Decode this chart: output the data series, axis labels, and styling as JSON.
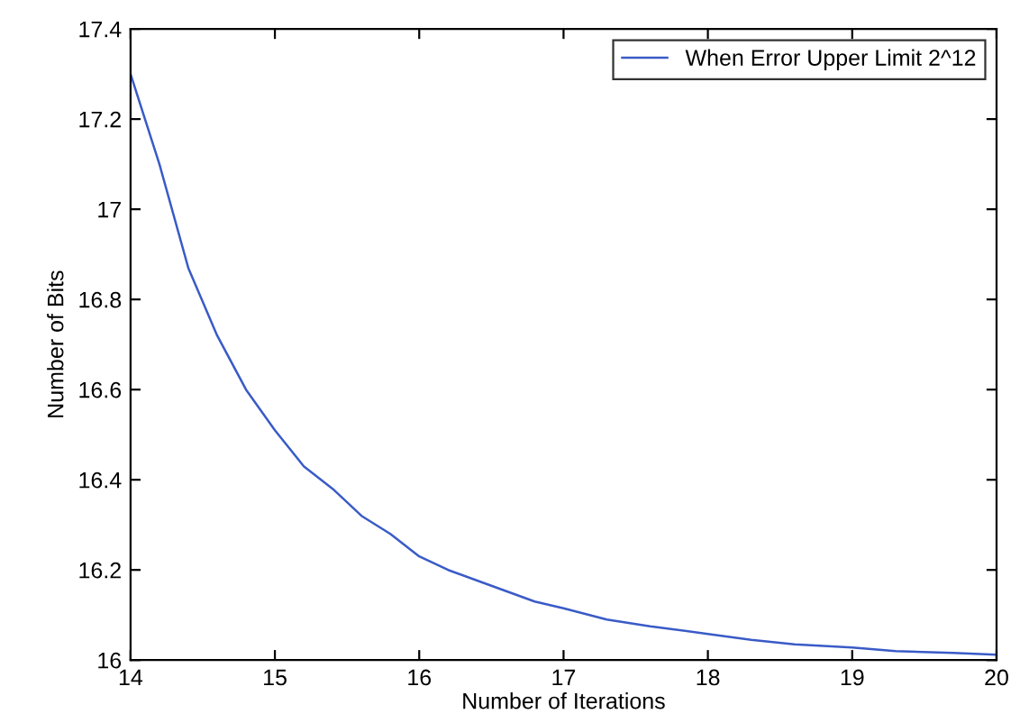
{
  "chart_data": {
    "type": "line",
    "xlabel": "Number of Iterations",
    "ylabel": "Number of Bits",
    "xlim": [
      14,
      20
    ],
    "xticks": [
      14,
      15,
      16,
      17,
      18,
      19,
      20
    ],
    "ylim": [
      16,
      17.4
    ],
    "yticks": [
      16,
      {
        "value": 16.2,
        "label": "16.2"
      },
      {
        "value": 16.4,
        "label": "16.4"
      },
      {
        "value": 16.6,
        "label": "16.6"
      },
      {
        "value": 16.8,
        "label": "16.8"
      },
      17,
      {
        "value": 17.2,
        "label": "17.2"
      },
      {
        "value": 17.4,
        "label": "17.4"
      }
    ],
    "grid": false,
    "legend": "top right",
    "marker": "none",
    "line_style": "solid",
    "series": [
      {
        "name": "When Error Upper Limit 2^12",
        "color": "#3a5bc7",
        "x": [
          14,
          14.2,
          14.4,
          14.6,
          14.8,
          15.0,
          15.2,
          15.4,
          15.6,
          15.8,
          16.0,
          16.2,
          16.5,
          16.8,
          17,
          17.3,
          17.6,
          18,
          18.3,
          18.6,
          19,
          19.3,
          19.7,
          20
        ],
        "values": [
          17.3,
          17.1,
          16.87,
          16.72,
          16.6,
          16.51,
          16.43,
          16.38,
          16.32,
          16.28,
          16.23,
          16.2,
          16.165,
          16.13,
          16.115,
          16.09,
          16.075,
          16.058,
          16.045,
          16.035,
          16.028,
          16.02,
          16.016,
          16.012
        ]
      }
    ]
  }
}
